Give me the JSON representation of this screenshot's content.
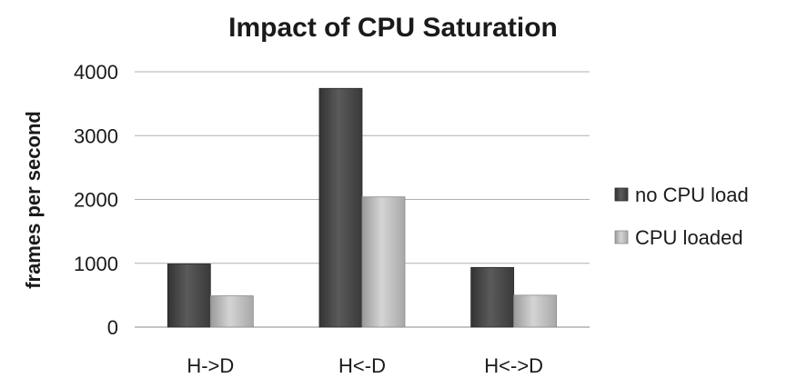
{
  "chart_data": {
    "type": "bar",
    "title": "Impact of CPU Saturation",
    "xlabel": "",
    "ylabel": "frames per second",
    "categories": [
      "H->D",
      "H<-D",
      "H<->D"
    ],
    "series": [
      {
        "name": "no CPU load",
        "values": [
          990,
          3740,
          935
        ],
        "color": "#4a4a4a"
      },
      {
        "name": "CPU loaded",
        "values": [
          490,
          2040,
          500
        ],
        "color": "#b8b8b8"
      }
    ],
    "ylim": [
      0,
      4000
    ],
    "yticks": [
      0,
      1000,
      2000,
      3000,
      4000
    ],
    "grid": true,
    "legend_position": "right"
  }
}
